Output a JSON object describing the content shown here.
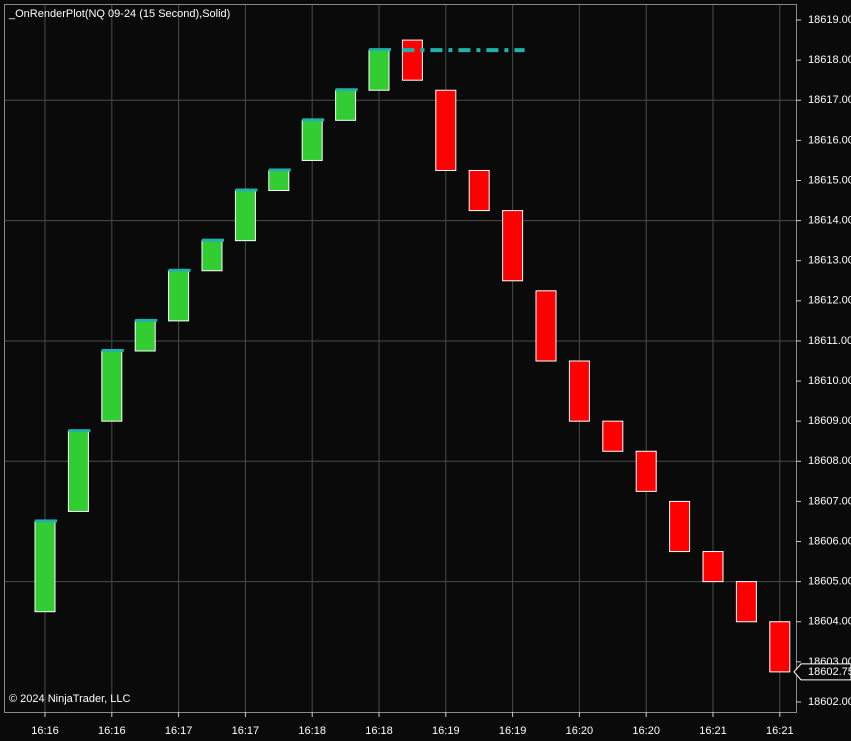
{
  "chart_data": {
    "type": "candlestick",
    "title": "_OnRenderPlot(NQ 09-24 (15 Second),Solid)",
    "copyright": "© 2024 NinjaTrader, LLC",
    "categories": [
      "16:16",
      null,
      "16:16",
      null,
      "16:17",
      null,
      "16:17",
      null,
      "16:18",
      null,
      "16:18",
      null,
      "16:19",
      null,
      "16:19",
      null,
      "16:20",
      null,
      "16:20",
      null,
      "16:21",
      null,
      "16:21"
    ],
    "open": [
      18604.25,
      18606.75,
      18609.0,
      18610.75,
      18611.5,
      18612.75,
      18613.5,
      18614.75,
      18615.5,
      18616.5,
      18617.25,
      18618.5,
      18617.25,
      18615.25,
      18614.25,
      18612.25,
      18610.5,
      18609.0,
      18608.25,
      18607.0,
      18605.75,
      18605.0,
      18604.0
    ],
    "close": [
      18606.5,
      18608.75,
      18610.75,
      18611.5,
      18612.75,
      18613.5,
      18614.75,
      18615.25,
      18616.5,
      18617.25,
      18618.25,
      18617.5,
      18615.25,
      18614.25,
      18612.5,
      18610.5,
      18609.0,
      18608.25,
      18607.25,
      18605.75,
      18605.0,
      18604.0,
      18602.75
    ],
    "up_color": "#32cd32",
    "down_color": "#ff0000",
    "plot_color": "#20b2aa",
    "plot_line": 18618.25,
    "ylim": [
      18601.75,
      18619.375
    ],
    "yticks": [
      {
        "value": 18602,
        "label": "18602.00"
      },
      {
        "value": 18603,
        "label": "18603.00"
      },
      {
        "value": 18604,
        "label": "18604.00"
      },
      {
        "value": 18605,
        "label": "18605.00"
      },
      {
        "value": 18606,
        "label": "18606.00"
      },
      {
        "value": 18607,
        "label": "18607.00"
      },
      {
        "value": 18608,
        "label": "18608.00"
      },
      {
        "value": 18609,
        "label": "18609.00"
      },
      {
        "value": 18610,
        "label": "18610.00"
      },
      {
        "value": 18611,
        "label": "18611.00"
      },
      {
        "value": 18612,
        "label": "18612.00"
      },
      {
        "value": 18613,
        "label": "18613.00"
      },
      {
        "value": 18614,
        "label": "18614.00"
      },
      {
        "value": 18615,
        "label": "18615.00"
      },
      {
        "value": 18616,
        "label": "18616.00"
      },
      {
        "value": 18617,
        "label": "18617.00"
      },
      {
        "value": 18618,
        "label": "18618.00"
      },
      {
        "value": 18619,
        "label": "18619.00"
      }
    ],
    "ygrid": [
      18605,
      18608,
      18611,
      18614,
      18617
    ],
    "last_price": {
      "value": 18602.75,
      "label": "18602.75"
    }
  }
}
